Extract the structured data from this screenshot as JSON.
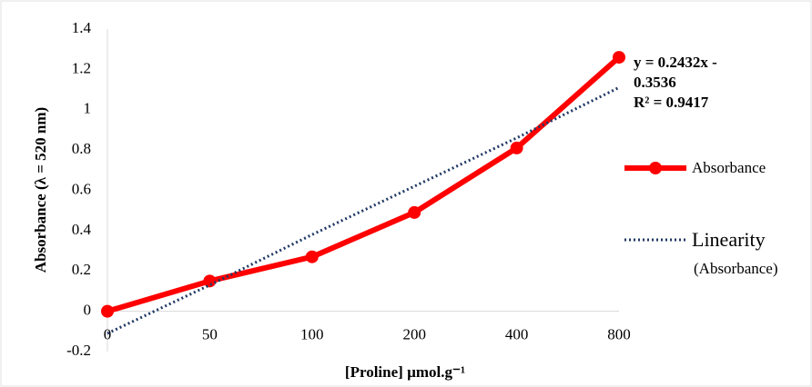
{
  "chart_data": {
    "type": "line",
    "categories": [
      "0",
      "50",
      "100",
      "200",
      "400",
      "800"
    ],
    "series": [
      {
        "name": "Absorbance",
        "color": "#ff0000",
        "values": [
          0,
          0.15,
          0.27,
          0.49,
          0.81,
          1.26
        ]
      },
      {
        "name": "Linearity",
        "name_note": "(Absorbance)",
        "color": "#1f3864",
        "style": "dotted",
        "values": [
          -0.11,
          0.13,
          0.38,
          0.62,
          0.86,
          1.11
        ]
      }
    ],
    "trendline_label": [
      "y = 0.2432x -",
      "0.3536",
      "R² = 0.9417"
    ],
    "x_label": "[Proline] µmol.g⁻¹",
    "y_label": "Absorbance (λ = 520 nm)",
    "ylim": [
      -0.2,
      1.4
    ],
    "yticks": [
      -0.2,
      0,
      0.2,
      0.4,
      0.6,
      0.8,
      1,
      1.2,
      1.4
    ],
    "grid": false
  }
}
